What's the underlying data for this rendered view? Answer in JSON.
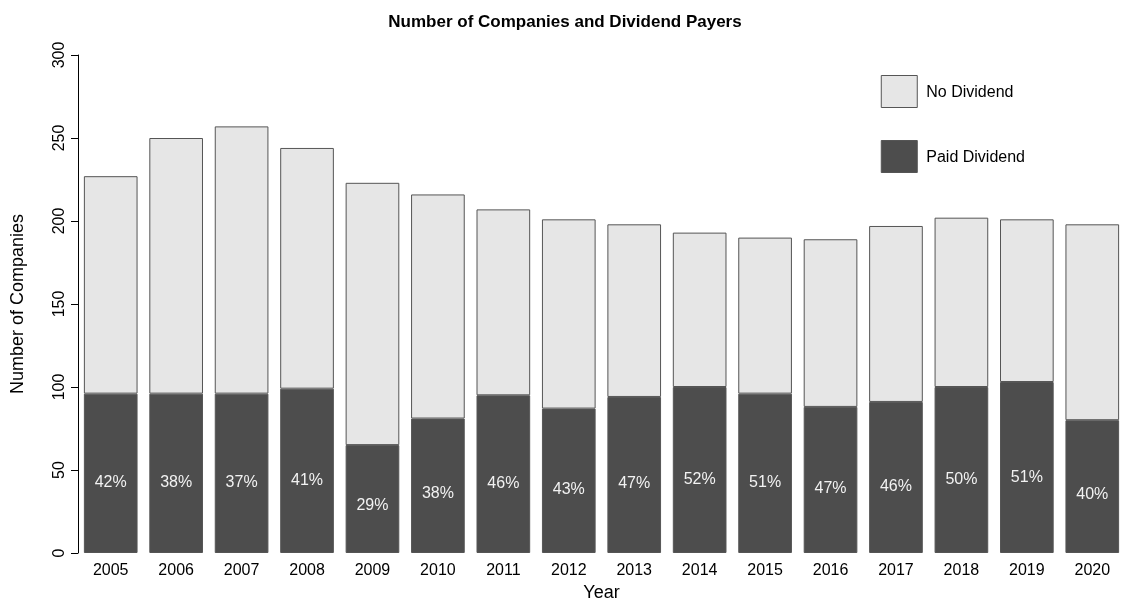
{
  "chart_data": {
    "type": "bar",
    "title": "Number of Companies and Dividend Payers",
    "xlabel": "Year",
    "ylabel": "Number of Companies",
    "categories": [
      "2005",
      "2006",
      "2007",
      "2008",
      "2009",
      "2010",
      "2011",
      "2012",
      "2013",
      "2014",
      "2015",
      "2016",
      "2017",
      "2018",
      "2019",
      "2020"
    ],
    "stacked": true,
    "legend": "top right",
    "grid": false,
    "ylim": [
      0,
      300
    ],
    "yticks": [
      0,
      50,
      100,
      150,
      200,
      250,
      300
    ],
    "series": [
      {
        "name": "Paid Dividend",
        "color": "#4d4d4d",
        "values": [
          96,
          96,
          96,
          99,
          65,
          81,
          95,
          87,
          94,
          100,
          96,
          88,
          91,
          100,
          103,
          80
        ]
      },
      {
        "name": "No Dividend",
        "color": "#e6e6e6",
        "values": [
          131,
          154,
          161,
          145,
          158,
          135,
          112,
          114,
          104,
          93,
          94,
          101,
          106,
          102,
          98,
          118
        ]
      }
    ],
    "annotations": [
      "42%",
      "38%",
      "37%",
      "41%",
      "29%",
      "38%",
      "46%",
      "43%",
      "47%",
      "52%",
      "51%",
      "47%",
      "46%",
      "50%",
      "51%",
      "40%"
    ]
  }
}
